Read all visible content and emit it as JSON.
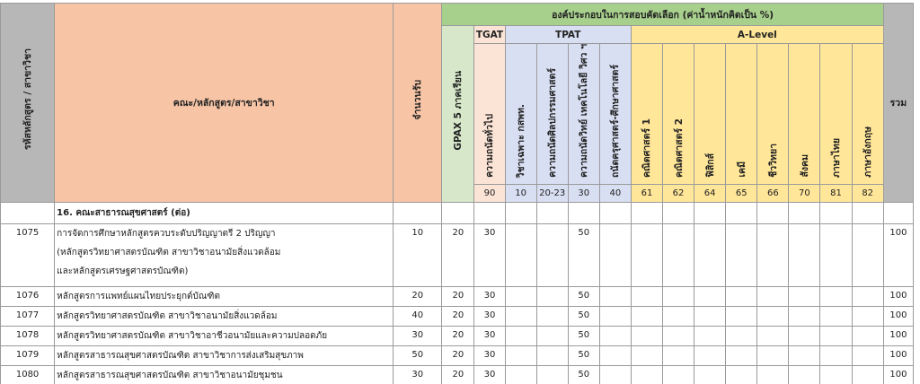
{
  "header": {
    "code_label": "รหัสหลักสูตร / สาขาวิชา",
    "program_label": "คณะ/หลักสูตร/สาขาวิชา",
    "seats_label": "จำนวนรับ",
    "components_title": "องค์ประกอบในการสอบคัดเลือก (ค่าน้ำหนักคิดเป็น %)",
    "gpax_label": "GPAX 5 ภาคเรียน",
    "tgat_label": "TGAT",
    "tpat_label": "TPAT",
    "alevel_label": "A-Level",
    "total_label": "รวม",
    "subjects": [
      {
        "label": "ความถนัดทั่วไป",
        "code": "90"
      },
      {
        "label": "วิชาเฉพาะ กสพท.",
        "code": "10"
      },
      {
        "label": "ความถนัดศิลปกรรมศาสตร์",
        "code": "20-23"
      },
      {
        "label": "ความถนัดวิทย์ เทคโนโลยี วิศว ฯ",
        "code": "30"
      },
      {
        "label": "ถนัดครุศาสตร์-ศึกษาศาสตร์",
        "code": "40"
      },
      {
        "label": "คณิตศาสตร์ 1",
        "code": "61"
      },
      {
        "label": "คณิตศาสตร์ 2",
        "code": "62"
      },
      {
        "label": "ฟิสิกส์",
        "code": "64"
      },
      {
        "label": "เคมี",
        "code": "65"
      },
      {
        "label": "ชีววิทยา",
        "code": "66"
      },
      {
        "label": "สังคม",
        "code": "70"
      },
      {
        "label": "ภาษาไทย",
        "code": "81"
      },
      {
        "label": "ภาษาอังกฤษ",
        "code": "82"
      }
    ]
  },
  "faculty": "16. คณะสาธารณสุขศาสตร์ (ต่อ)",
  "rows": [
    {
      "code": "1075",
      "name": "การจัดการศึกษาหลักสูตรควบระดับปริญญาตรี 2 ปริญญา",
      "note1": "(หลักสูตรวิทยาศาสตรบัณฑิต สาขาวิชาอนามัยสิ่งแวดล้อม",
      "note2": "และหลักสูตรเศรษฐศาสตรบัณฑิต)",
      "seats": "10",
      "gpax": "20",
      "tgat": "30",
      "tpat3": "50",
      "total": "100"
    },
    {
      "code": "1076",
      "name": "หลักสูตรการแพทย์แผนไทยประยุกต์บัณฑิต",
      "seats": "20",
      "gpax": "20",
      "tgat": "30",
      "tpat3": "50",
      "total": "100"
    },
    {
      "code": "1077",
      "name": "หลักสูตรวิทยาศาสตรบัณฑิต สาขาวิชาอนามัยสิ่งแวดล้อม",
      "seats": "40",
      "gpax": "20",
      "tgat": "30",
      "tpat3": "50",
      "total": "100"
    },
    {
      "code": "1078",
      "name": "หลักสูตรวิทยาศาสตรบัณฑิต สาขาวิชาอาชีวอนามัยและความปลอดภัย",
      "seats": "30",
      "gpax": "20",
      "tgat": "30",
      "tpat3": "50",
      "total": "100"
    },
    {
      "code": "1079",
      "name": "หลักสูตรสาธารณสุขศาสตรบัณฑิต สาขาวิชาการส่งเสริมสุขภาพ",
      "seats": "50",
      "gpax": "20",
      "tgat": "30",
      "tpat3": "50",
      "total": "100"
    },
    {
      "code": "1080",
      "name": "หลักสูตรสาธารณสุขศาสตรบัณฑิต สาขาวิชาอนามัยชุมชน",
      "seats": "30",
      "gpax": "20",
      "tgat": "30",
      "tpat3": "50",
      "total": "100"
    }
  ],
  "colors": {
    "grey": "#b7b7b7",
    "salmon": "#f7c5a6",
    "green": "#d6e8c9",
    "green_dark": "#a8d08d",
    "tgat_pink": "#fbe4d6",
    "tpat_blue": "#d9dff3",
    "alevel_yellow": "#ffe699"
  }
}
